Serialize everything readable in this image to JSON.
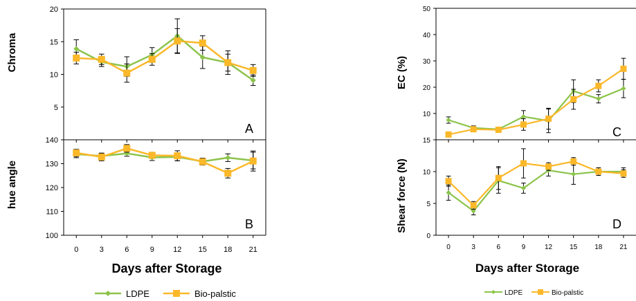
{
  "colors": {
    "ldpe": "#8BC34A",
    "bio": "#FBB829",
    "axis": "#000000",
    "grid": "#888888"
  },
  "left": {
    "xlabel": "Days after Storage",
    "legend": {
      "ldpe": "LDPE",
      "bio": "Bio-palstic"
    }
  },
  "right": {
    "xlabel": "Days after Storage",
    "legend": {
      "ldpe": "LDPE",
      "bio": "Bio-palstic"
    }
  },
  "chart_data": [
    {
      "type": "line",
      "panel": "A",
      "ylabel": "Chroma",
      "x": [
        0,
        3,
        6,
        9,
        12,
        15,
        18,
        21
      ],
      "ylim": [
        0,
        20
      ],
      "yticks": [
        5,
        10,
        15,
        20
      ],
      "series": [
        {
          "name": "LDPE",
          "values": [
            13.9,
            11.9,
            11.2,
            13.0,
            15.9,
            12.6,
            11.8,
            9.1
          ],
          "errors": [
            1.4,
            0.7,
            1.5,
            1.1,
            2.6,
            1.7,
            1.8,
            0.8
          ]
        },
        {
          "name": "Bio-palstic",
          "values": [
            12.5,
            12.3,
            10.2,
            12.3,
            15.1,
            14.8,
            11.8,
            10.6
          ],
          "errors": [
            0.9,
            0.8,
            1.4,
            0.9,
            1.9,
            1.1,
            1.3,
            0.9
          ]
        }
      ]
    },
    {
      "type": "line",
      "panel": "B",
      "ylabel": "hue angle",
      "x": [
        0,
        3,
        6,
        9,
        12,
        15,
        18,
        21
      ],
      "ylim": [
        100,
        140
      ],
      "yticks": [
        100,
        110,
        120,
        130,
        140
      ],
      "series": [
        {
          "name": "LDPE",
          "values": [
            134.0,
            133.2,
            134.3,
            132.6,
            132.8,
            130.9,
            132.5,
            131.3
          ],
          "errors": [
            1.5,
            1.2,
            1.2,
            1.3,
            1.6,
            1.4,
            1.6,
            3.5
          ]
        },
        {
          "name": "Bio-palstic",
          "values": [
            134.5,
            132.8,
            136.4,
            133.5,
            133.3,
            130.8,
            126.0,
            131.1
          ],
          "errors": [
            1.5,
            1.6,
            1.6,
            1.3,
            2.1,
            1.4,
            2.0,
            4.2
          ]
        }
      ]
    },
    {
      "type": "line",
      "panel": "C",
      "ylabel": "EC (%)",
      "x": [
        0,
        3,
        6,
        9,
        12,
        15,
        18,
        21
      ],
      "ylim": [
        0,
        50
      ],
      "yticks": [
        10,
        20,
        30,
        40,
        50
      ],
      "series": [
        {
          "name": "LDPE",
          "values": [
            7.5,
            4.5,
            4.0,
            8.8,
            7.2,
            18.5,
            15.6,
            19.5
          ],
          "errors": [
            1.2,
            0.8,
            0.8,
            2.3,
            4.5,
            4.3,
            1.6,
            3.5
          ]
        },
        {
          "name": "Bio-palstic",
          "values": [
            2.0,
            4.0,
            3.8,
            5.8,
            8.0,
            15.4,
            20.5,
            27.0
          ],
          "errors": [
            0.5,
            0.8,
            0.8,
            2.2,
            4.0,
            3.8,
            2.3,
            4.0
          ]
        }
      ]
    },
    {
      "type": "line",
      "panel": "D",
      "ylabel": "Shear force (N)",
      "x": [
        0,
        3,
        6,
        9,
        12,
        15,
        18,
        21
      ],
      "ylim": [
        0,
        15
      ],
      "yticks": [
        0,
        5,
        10,
        15
      ],
      "series": [
        {
          "name": "LDPE",
          "values": [
            6.7,
            3.8,
            8.6,
            7.4,
            10.2,
            9.6,
            10.0,
            10.0
          ],
          "errors": [
            1.2,
            0.6,
            2.0,
            0.8,
            0.9,
            1.6,
            0.6,
            0.6
          ]
        },
        {
          "name": "Bio-palstic",
          "values": [
            8.5,
            4.7,
            9.0,
            11.3,
            10.8,
            11.6,
            10.0,
            9.7
          ],
          "errors": [
            0.8,
            0.6,
            1.8,
            2.3,
            0.6,
            0.6,
            0.6,
            0.6
          ]
        }
      ]
    }
  ]
}
